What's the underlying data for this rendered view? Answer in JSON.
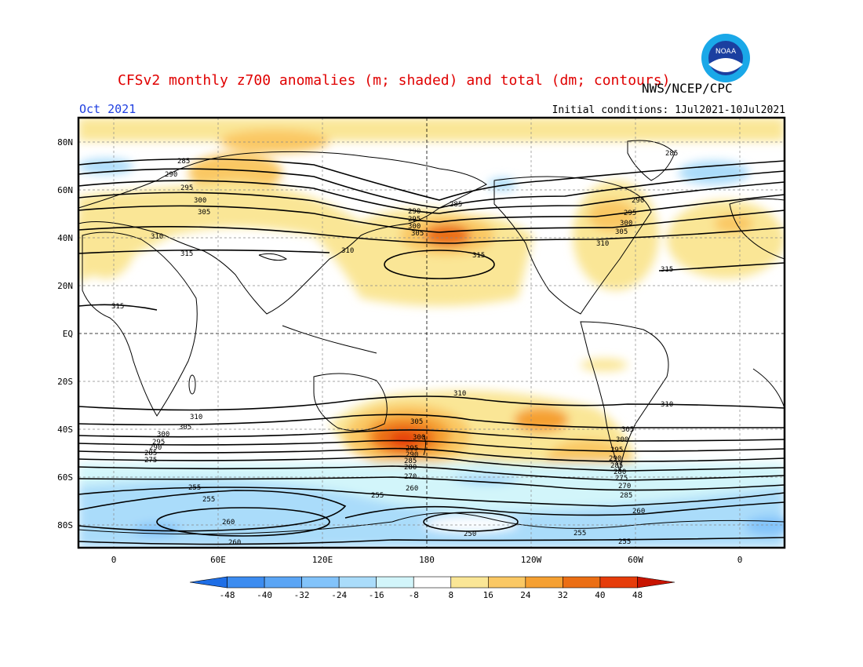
{
  "header": {
    "title": "CFSv2 monthly z700 anomalies (m; shaded) and total (dm; contours)",
    "agency": "NWS/NCEP/CPC",
    "month": "Oct 2021",
    "initial_conditions": "Initial conditions: 1Jul2021-10Jul2021",
    "logo_text": "NOAA"
  },
  "map": {
    "lat_labels": [
      "80N",
      "60N",
      "40N",
      "20N",
      "EQ",
      "20S",
      "40S",
      "60S",
      "80S"
    ],
    "lon_labels": [
      "0",
      "60E",
      "120E",
      "180",
      "120W",
      "60W",
      "0"
    ],
    "contour_labels": [
      "285",
      "290",
      "295",
      "300",
      "305",
      "310",
      "315",
      "255",
      "260",
      "250",
      "275",
      "280",
      "270"
    ]
  },
  "colorbar": {
    "ticks": [
      "-48",
      "-40",
      "-32",
      "-24",
      "-16",
      "-8",
      "8",
      "16",
      "24",
      "32",
      "40",
      "48"
    ],
    "colors": [
      "#1e6ee6",
      "#3c8cf0",
      "#5aa5f5",
      "#82c3fa",
      "#aadcfa",
      "#d2f5fa",
      "#ffffff",
      "#fae696",
      "#fac864",
      "#f5a032",
      "#eb6e14",
      "#e63c0a",
      "#c81400"
    ]
  }
}
